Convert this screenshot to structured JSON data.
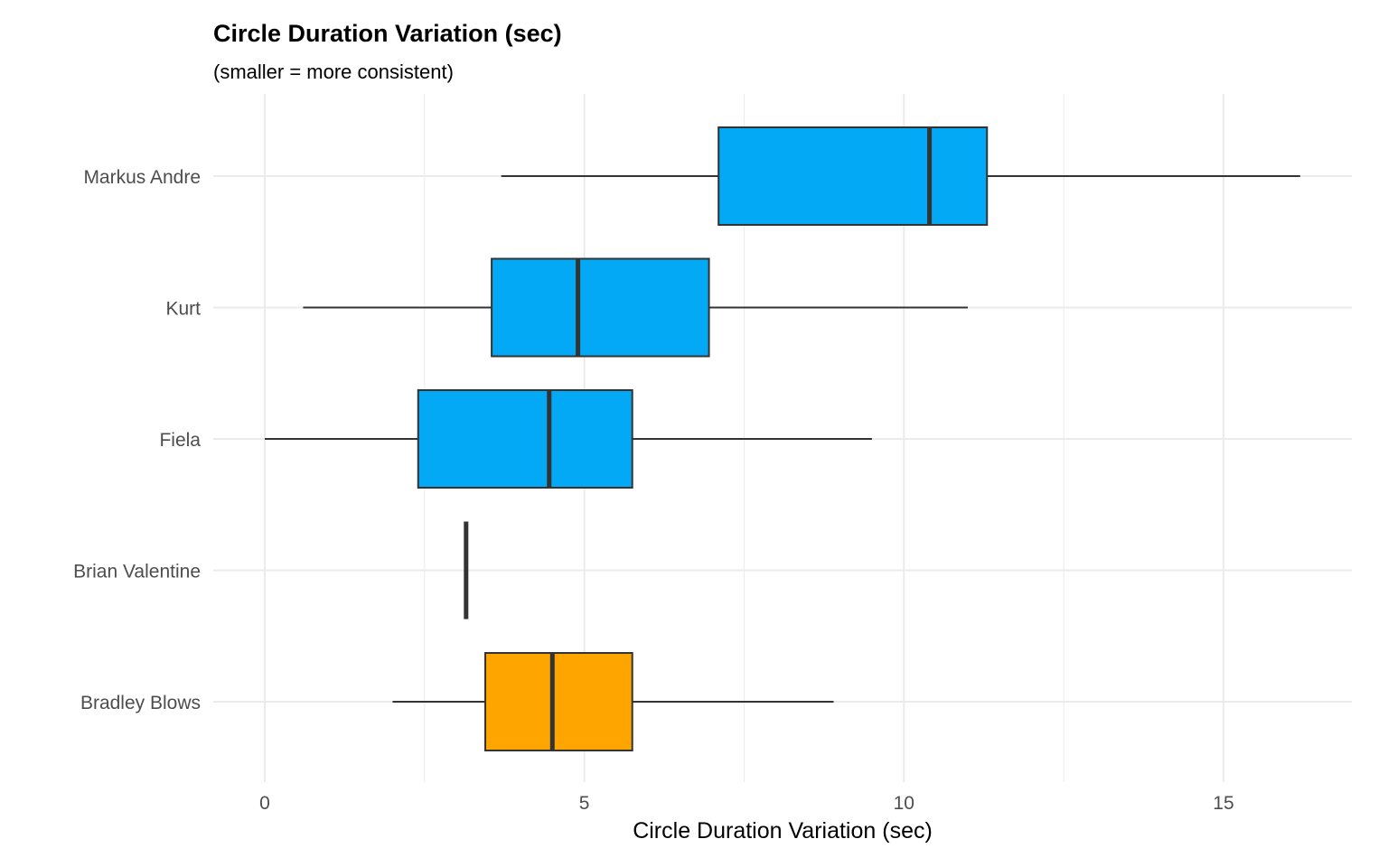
{
  "chart_data": {
    "type": "boxplot",
    "title": "Circle Duration Variation (sec)",
    "subtitle": "(smaller = more consistent)",
    "xlabel": "Circle Duration Variation (sec)",
    "ylabel": "",
    "xlim": [
      -0.8,
      17
    ],
    "x_ticks": [
      0,
      5,
      10,
      15
    ],
    "x_minor_ticks": [
      2.5,
      7.5,
      12.5
    ],
    "grid": true,
    "legend": "none",
    "colors": {
      "default_fill": "#03A9F4",
      "highlight_fill": "#FFA500",
      "box_stroke": "#333333",
      "grid": "#ebebeb"
    },
    "categories": [
      "Markus Andre",
      "Kurt",
      "Fiela",
      "Brian Valentine",
      "Bradley Blows"
    ],
    "boxes": [
      {
        "name": "Markus Andre",
        "min": 3.7,
        "q1": 7.1,
        "median": 10.4,
        "q3": 11.3,
        "max": 16.2,
        "highlight": false
      },
      {
        "name": "Kurt",
        "min": 0.6,
        "q1": 3.55,
        "median": 4.9,
        "q3": 6.95,
        "max": 11.0,
        "highlight": false
      },
      {
        "name": "Fiela",
        "min": 0.0,
        "q1": 2.4,
        "median": 4.45,
        "q3": 5.75,
        "max": 9.5,
        "highlight": false
      },
      {
        "name": "Brian Valentine",
        "min": 3.15,
        "q1": 3.15,
        "median": 3.15,
        "q3": 3.15,
        "max": 3.15,
        "highlight": false
      },
      {
        "name": "Bradley Blows",
        "min": 2.0,
        "q1": 3.45,
        "median": 4.5,
        "q3": 5.75,
        "max": 8.9,
        "highlight": true
      }
    ]
  }
}
